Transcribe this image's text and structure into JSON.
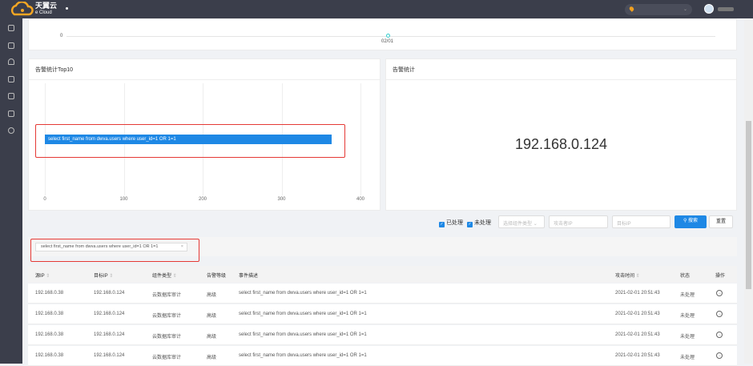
{
  "header": {
    "brand": "天翼云",
    "brand_sub": "e Cloud"
  },
  "trend_chart": {
    "y_tick": "0",
    "x_tick": "02/01"
  },
  "top10": {
    "title": "告警统计Top10",
    "chart_data": {
      "type": "bar",
      "orientation": "horizontal",
      "categories": [
        "select first_name from dwva.users where user_id=1 OR 1=1"
      ],
      "values": [
        363
      ],
      "xlim": [
        0,
        400
      ],
      "x_ticks": [
        "0",
        "100",
        "200",
        "300",
        "400"
      ],
      "grid": true,
      "bar_color": "#1e88e5"
    }
  },
  "alarm_stats": {
    "title": "告警统计",
    "value": "192.168.0.124"
  },
  "filters": {
    "processed": "已处理",
    "unprocessed": "未处理",
    "component_placeholder": "选择组件类型",
    "attacker_placeholder": "攻击者IP",
    "target_placeholder": "目标IP",
    "search": "搜索",
    "reset": "重置"
  },
  "active_tag": "select first_name from dwva.users where user_id=1 OR 1=1",
  "table": {
    "columns": [
      "源IP",
      "目标IP",
      "组件类型",
      "告警等级",
      "事件描述",
      "攻击时间",
      "状态",
      "操作"
    ],
    "rows": [
      [
        "192.168.0.38",
        "192.168.0.124",
        "云数据库审计",
        "高级",
        "select first_name from dwva.users where user_id=1 OR 1=1",
        "2021-02-01 20:51:43",
        "未处理"
      ],
      [
        "192.168.0.38",
        "192.168.0.124",
        "云数据库审计",
        "高级",
        "select first_name from dwva.users where user_id=1 OR 1=1",
        "2021-02-01 20:51:43",
        "未处理"
      ],
      [
        "192.168.0.38",
        "192.168.0.124",
        "云数据库审计",
        "高级",
        "select first_name from dwva.users where user_id=1 OR 1=1",
        "2021-02-01 20:51:43",
        "未处理"
      ],
      [
        "192.168.0.38",
        "192.168.0.124",
        "云数据库审计",
        "高级",
        "select first_name from dwva.users where user_id=1 OR 1=1",
        "2021-02-01 20:51:43",
        "未处理"
      ]
    ]
  }
}
